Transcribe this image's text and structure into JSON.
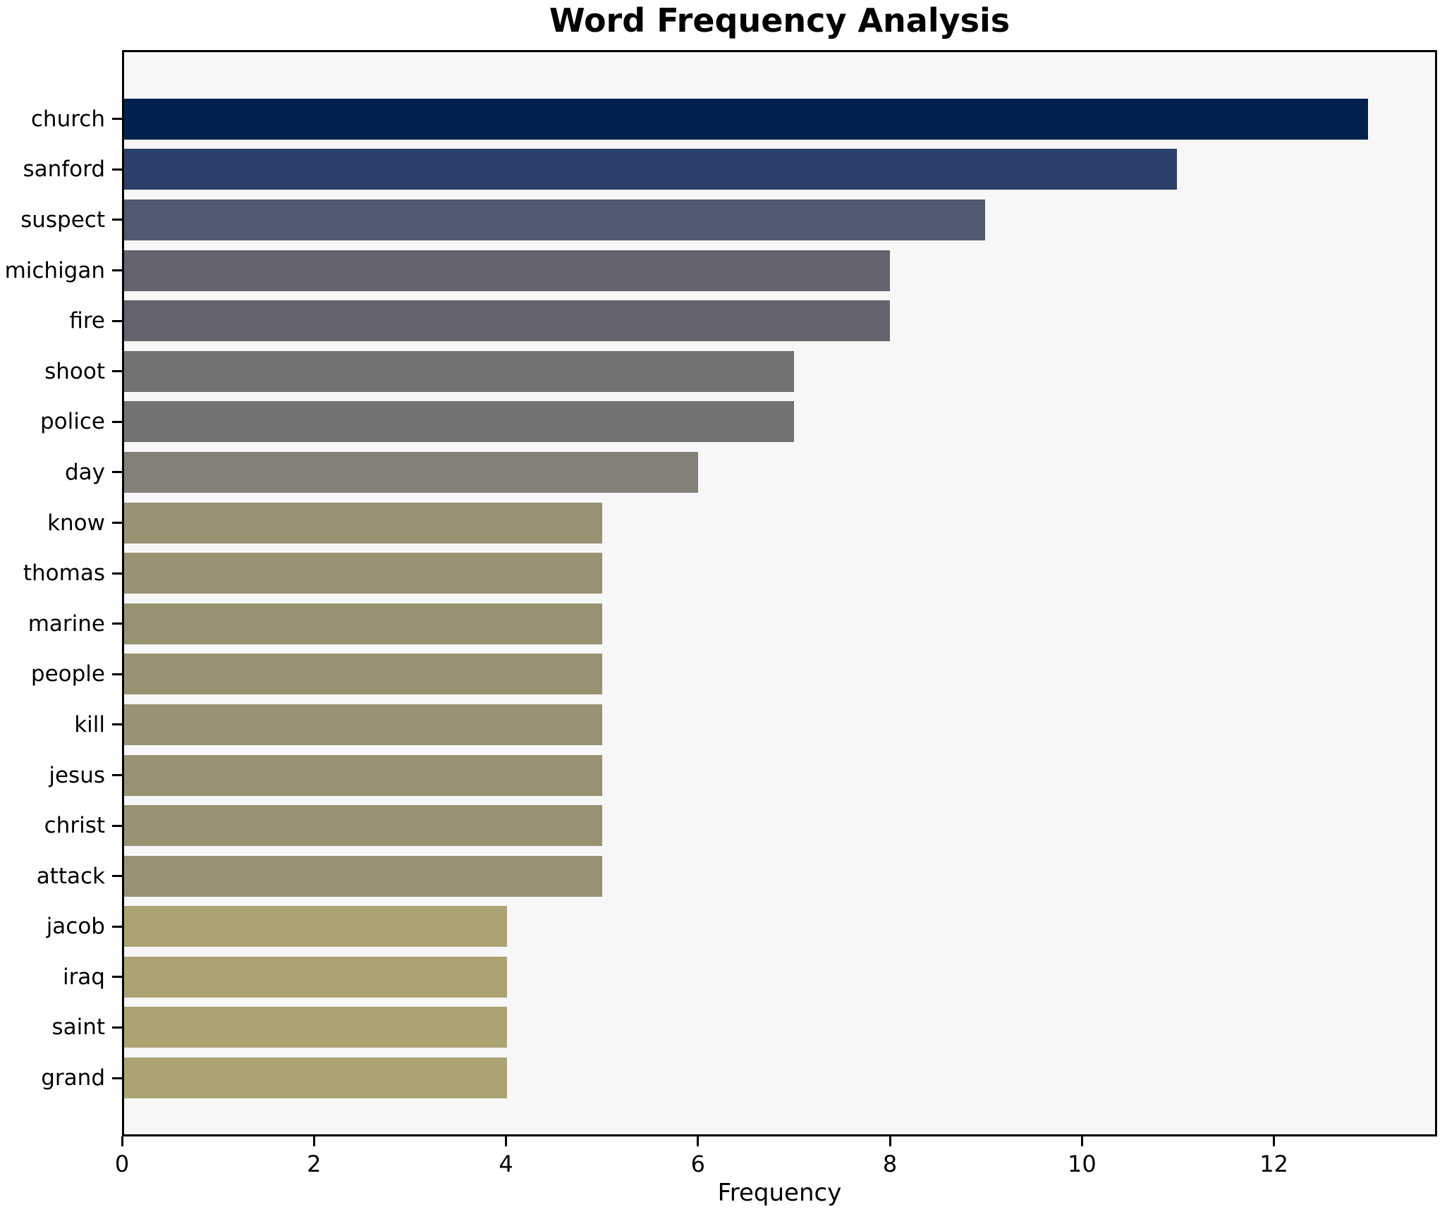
{
  "chart_data": {
    "type": "bar",
    "orientation": "horizontal",
    "title": "Word Frequency Analysis",
    "xlabel": "Frequency",
    "ylabel": "",
    "categories": [
      "church",
      "sanford",
      "suspect",
      "michigan",
      "fire",
      "shoot",
      "police",
      "day",
      "know",
      "thomas",
      "marine",
      "people",
      "kill",
      "jesus",
      "christ",
      "attack",
      "jacob",
      "iraq",
      "saint",
      "grand"
    ],
    "values": [
      13,
      11,
      9,
      8,
      8,
      7,
      7,
      6,
      5,
      5,
      5,
      5,
      5,
      5,
      5,
      5,
      4,
      4,
      4,
      4
    ],
    "bar_colors": [
      "#02214d",
      "#2c406b",
      "#515a6e",
      "#63646e",
      "#63646e",
      "#727271",
      "#727271",
      "#84817a",
      "#989271",
      "#989271",
      "#989271",
      "#989271",
      "#989271",
      "#989271",
      "#989271",
      "#989271",
      "#aca372",
      "#aca372",
      "#aca372",
      "#aca372"
    ],
    "xticks": [
      0,
      2,
      4,
      6,
      8,
      10,
      12
    ],
    "xlim": [
      0,
      13.7
    ],
    "grid": false,
    "legend": null,
    "colors": {
      "figure_bg": "#ffffff",
      "plot_bg": "#f7f7f8",
      "spine": "#000000",
      "text": "#000000"
    }
  }
}
